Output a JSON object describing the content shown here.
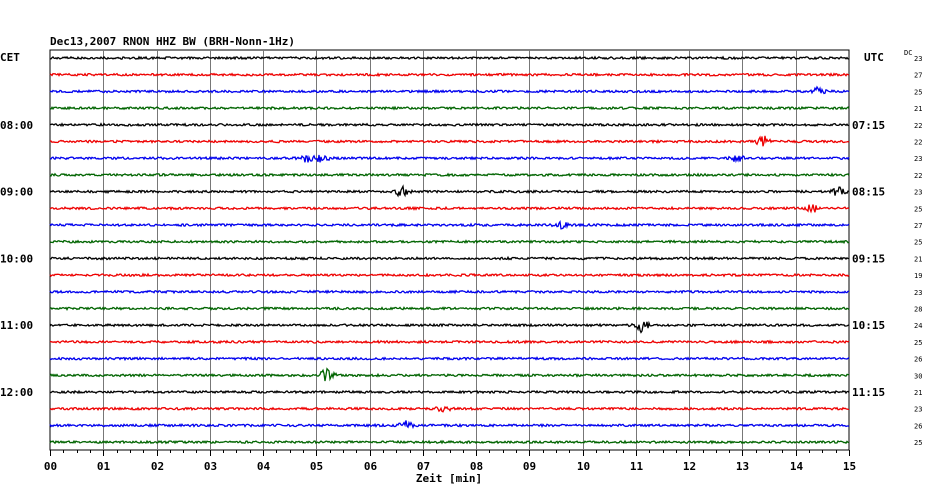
{
  "chart_data": {
    "type": "line",
    "title": "Dec13,2007  RNON HHZ BW (BRH-Nonn-1Hz)",
    "left_timezone": "CET",
    "right_timezone": "UTC",
    "dc_label": "DC",
    "xlabel": "Zeit [min]",
    "x_ticks": [
      "00",
      "01",
      "02",
      "03",
      "04",
      "05",
      "06",
      "07",
      "08",
      "09",
      "10",
      "11",
      "12",
      "13",
      "14",
      "15"
    ],
    "xlim": [
      0,
      15
    ],
    "grid": true,
    "left_hour_labels": [
      {
        "row": 4,
        "text": "08:00"
      },
      {
        "row": 8,
        "text": "09:00"
      },
      {
        "row": 12,
        "text": "10:00"
      },
      {
        "row": 16,
        "text": "11:00"
      },
      {
        "row": 20,
        "text": "12:00"
      }
    ],
    "right_hour_labels": [
      {
        "row": 4,
        "text": "07:15"
      },
      {
        "row": 8,
        "text": "08:15"
      },
      {
        "row": 12,
        "text": "09:15"
      },
      {
        "row": 16,
        "text": "10:15"
      },
      {
        "row": 20,
        "text": "11:15"
      }
    ],
    "trace_colors": [
      "#000000",
      "#ee0000",
      "#0000ee",
      "#006400"
    ],
    "dc_offsets": [
      "23",
      "27",
      "25",
      "21",
      "22",
      "22",
      "23",
      "22",
      "23",
      "25",
      "27",
      "25",
      "21",
      "19",
      "23",
      "28",
      "24",
      "25",
      "26",
      "30",
      "21",
      "23",
      "26",
      "25"
    ],
    "events": [
      {
        "row": 2,
        "minute": 14.4,
        "amp": 2.0
      },
      {
        "row": 5,
        "minute": 13.4,
        "amp": 2.4
      },
      {
        "row": 6,
        "minute": 4.8,
        "amp": 1.6
      },
      {
        "row": 6,
        "minute": 5.1,
        "amp": 1.6
      },
      {
        "row": 6,
        "minute": 12.9,
        "amp": 1.5
      },
      {
        "row": 8,
        "minute": 6.6,
        "amp": 2.2
      },
      {
        "row": 8,
        "minute": 14.8,
        "amp": 1.8
      },
      {
        "row": 9,
        "minute": 14.3,
        "amp": 2.0
      },
      {
        "row": 10,
        "minute": 9.6,
        "amp": 1.4
      },
      {
        "row": 16,
        "minute": 11.1,
        "amp": 2.8
      },
      {
        "row": 19,
        "minute": 5.2,
        "amp": 2.8
      },
      {
        "row": 21,
        "minute": 7.4,
        "amp": 1.5
      },
      {
        "row": 22,
        "minute": 6.7,
        "amp": 2.2
      }
    ]
  }
}
